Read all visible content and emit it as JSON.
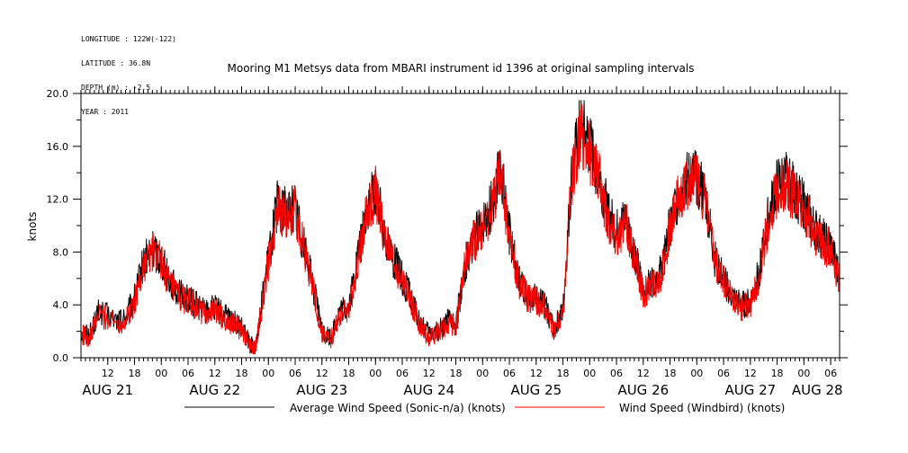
{
  "meta": {
    "longitude": "LONGITUDE : 122W(-122)",
    "latitude": "LATITUDE : 36.8N",
    "depth": "DEPTH (m) : -2.5",
    "year": "YEAR : 2011"
  },
  "chart_data": {
    "type": "line",
    "title": "Mooring M1 Metsys data from MBARI instrument id 1396 at original sampling intervals",
    "ylabel": "knots",
    "xlabel": "",
    "ylim": [
      0,
      20
    ],
    "yticks": [
      "0.0",
      "4.0",
      "8.0",
      "12.0",
      "16.0",
      "20.0"
    ],
    "xlim_hours": [
      6,
      176
    ],
    "hour_ticks": [
      {
        "h": 12,
        "label": "12"
      },
      {
        "h": 18,
        "label": "18"
      },
      {
        "h": 24,
        "label": "00"
      },
      {
        "h": 30,
        "label": "06"
      },
      {
        "h": 36,
        "label": "12"
      },
      {
        "h": 42,
        "label": "18"
      },
      {
        "h": 48,
        "label": "00"
      },
      {
        "h": 54,
        "label": "06"
      },
      {
        "h": 60,
        "label": "12"
      },
      {
        "h": 66,
        "label": "18"
      },
      {
        "h": 72,
        "label": "00"
      },
      {
        "h": 78,
        "label": "06"
      },
      {
        "h": 84,
        "label": "12"
      },
      {
        "h": 90,
        "label": "18"
      },
      {
        "h": 96,
        "label": "00"
      },
      {
        "h": 102,
        "label": "06"
      },
      {
        "h": 108,
        "label": "12"
      },
      {
        "h": 114,
        "label": "18"
      },
      {
        "h": 120,
        "label": "00"
      },
      {
        "h": 126,
        "label": "06"
      },
      {
        "h": 132,
        "label": "12"
      },
      {
        "h": 138,
        "label": "18"
      },
      {
        "h": 144,
        "label": "00"
      },
      {
        "h": 150,
        "label": "06"
      },
      {
        "h": 156,
        "label": "12"
      },
      {
        "h": 162,
        "label": "18"
      },
      {
        "h": 168,
        "label": "00"
      },
      {
        "h": 174,
        "label": "06"
      }
    ],
    "day_labels": [
      {
        "h": 12,
        "label": "AUG 21"
      },
      {
        "h": 36,
        "label": "AUG 22"
      },
      {
        "h": 60,
        "label": "AUG 23"
      },
      {
        "h": 84,
        "label": "AUG 24"
      },
      {
        "h": 108,
        "label": "AUG 25"
      },
      {
        "h": 132,
        "label": "AUG 26"
      },
      {
        "h": 156,
        "label": "AUG 27"
      },
      {
        "h": 171,
        "label": "AUG 28"
      }
    ],
    "x_units": "hours from 2011-08-20 00:00",
    "series": [
      {
        "name": "Average Wind Speed (Sonic-n/a) (knots)",
        "color": "#000000",
        "x": [
          6,
          8,
          10,
          14,
          16,
          18,
          20,
          22,
          24,
          26,
          28,
          30,
          32,
          34,
          36,
          38,
          40,
          42,
          44,
          45,
          46,
          48,
          50,
          52,
          54,
          56,
          58,
          60,
          62,
          64,
          66,
          68,
          70,
          72,
          74,
          76,
          78,
          80,
          82,
          84,
          86,
          88,
          90,
          92,
          94,
          96,
          98,
          100,
          102,
          104,
          106,
          108,
          110,
          112,
          114,
          116,
          118,
          120,
          122,
          124,
          126,
          128,
          130,
          132,
          134,
          136,
          138,
          140,
          142,
          144,
          146,
          148,
          150,
          152,
          154,
          156,
          158,
          160,
          162,
          164,
          166,
          168,
          170,
          172,
          174,
          176
        ],
        "values": [
          2.0,
          1.8,
          3.5,
          2.8,
          3.0,
          4.5,
          7.2,
          8.2,
          7.5,
          5.8,
          4.8,
          4.5,
          4.0,
          3.5,
          3.8,
          3.2,
          2.8,
          2.2,
          1.0,
          0.8,
          3.0,
          7.5,
          11.5,
          11.0,
          11.5,
          8.5,
          5.5,
          2.0,
          1.5,
          3.5,
          3.8,
          7.5,
          11.0,
          12.8,
          9.5,
          7.5,
          6.0,
          4.5,
          2.5,
          1.8,
          2.0,
          2.8,
          2.5,
          7.0,
          9.0,
          10.0,
          11.5,
          14.5,
          9.5,
          6.0,
          4.8,
          4.5,
          4.0,
          2.2,
          3.5,
          14.0,
          17.5,
          16.0,
          14.0,
          11.0,
          9.5,
          10.5,
          8.0,
          5.0,
          5.8,
          6.5,
          10.0,
          12.5,
          13.5,
          13.8,
          12.0,
          7.5,
          6.0,
          4.5,
          4.0,
          4.2,
          6.5,
          10.5,
          13.0,
          13.5,
          12.5,
          11.5,
          10.0,
          9.0,
          8.5,
          6.0
        ]
      },
      {
        "name": "Wind Speed (Windbird) (knots)",
        "color": "#ff0000",
        "x": [
          6,
          8,
          10,
          14,
          16,
          18,
          20,
          22,
          24,
          26,
          28,
          30,
          32,
          34,
          36,
          38,
          40,
          42,
          44,
          45,
          46,
          48,
          50,
          52,
          54,
          56,
          58,
          60,
          62,
          64,
          66,
          68,
          70,
          72,
          74,
          76,
          78,
          80,
          82,
          84,
          86,
          88,
          90,
          92,
          94,
          96,
          98,
          100,
          102,
          104,
          106,
          108,
          110,
          112,
          114,
          116,
          118,
          120,
          122,
          124,
          126,
          128,
          130,
          132,
          134,
          136,
          138,
          140,
          142,
          144,
          146,
          148,
          150,
          152,
          154,
          156,
          158,
          160,
          162,
          164,
          166,
          168,
          170,
          172,
          174,
          176
        ],
        "values": [
          1.8,
          1.5,
          3.3,
          2.6,
          2.8,
          4.2,
          7.0,
          8.0,
          7.3,
          5.5,
          4.6,
          4.3,
          3.8,
          3.3,
          3.6,
          3.0,
          2.6,
          2.0,
          0.8,
          0.6,
          2.8,
          7.2,
          11.2,
          10.8,
          11.2,
          8.2,
          5.2,
          1.8,
          1.3,
          3.3,
          3.6,
          7.2,
          10.8,
          12.5,
          9.2,
          7.2,
          5.8,
          4.3,
          2.3,
          1.6,
          1.8,
          2.6,
          2.3,
          6.8,
          8.8,
          9.8,
          11.2,
          14.0,
          9.2,
          5.8,
          4.6,
          4.3,
          3.8,
          2.0,
          3.3,
          13.6,
          17.0,
          15.6,
          13.6,
          10.6,
          9.2,
          10.2,
          7.8,
          4.8,
          5.6,
          6.2,
          9.7,
          12.2,
          13.2,
          13.5,
          11.7,
          7.2,
          5.8,
          4.3,
          3.8,
          4.0,
          6.2,
          10.2,
          12.7,
          13.2,
          12.2,
          11.2,
          9.7,
          8.7,
          8.2,
          5.8
        ]
      }
    ],
    "legend_position": "bottom-center"
  }
}
